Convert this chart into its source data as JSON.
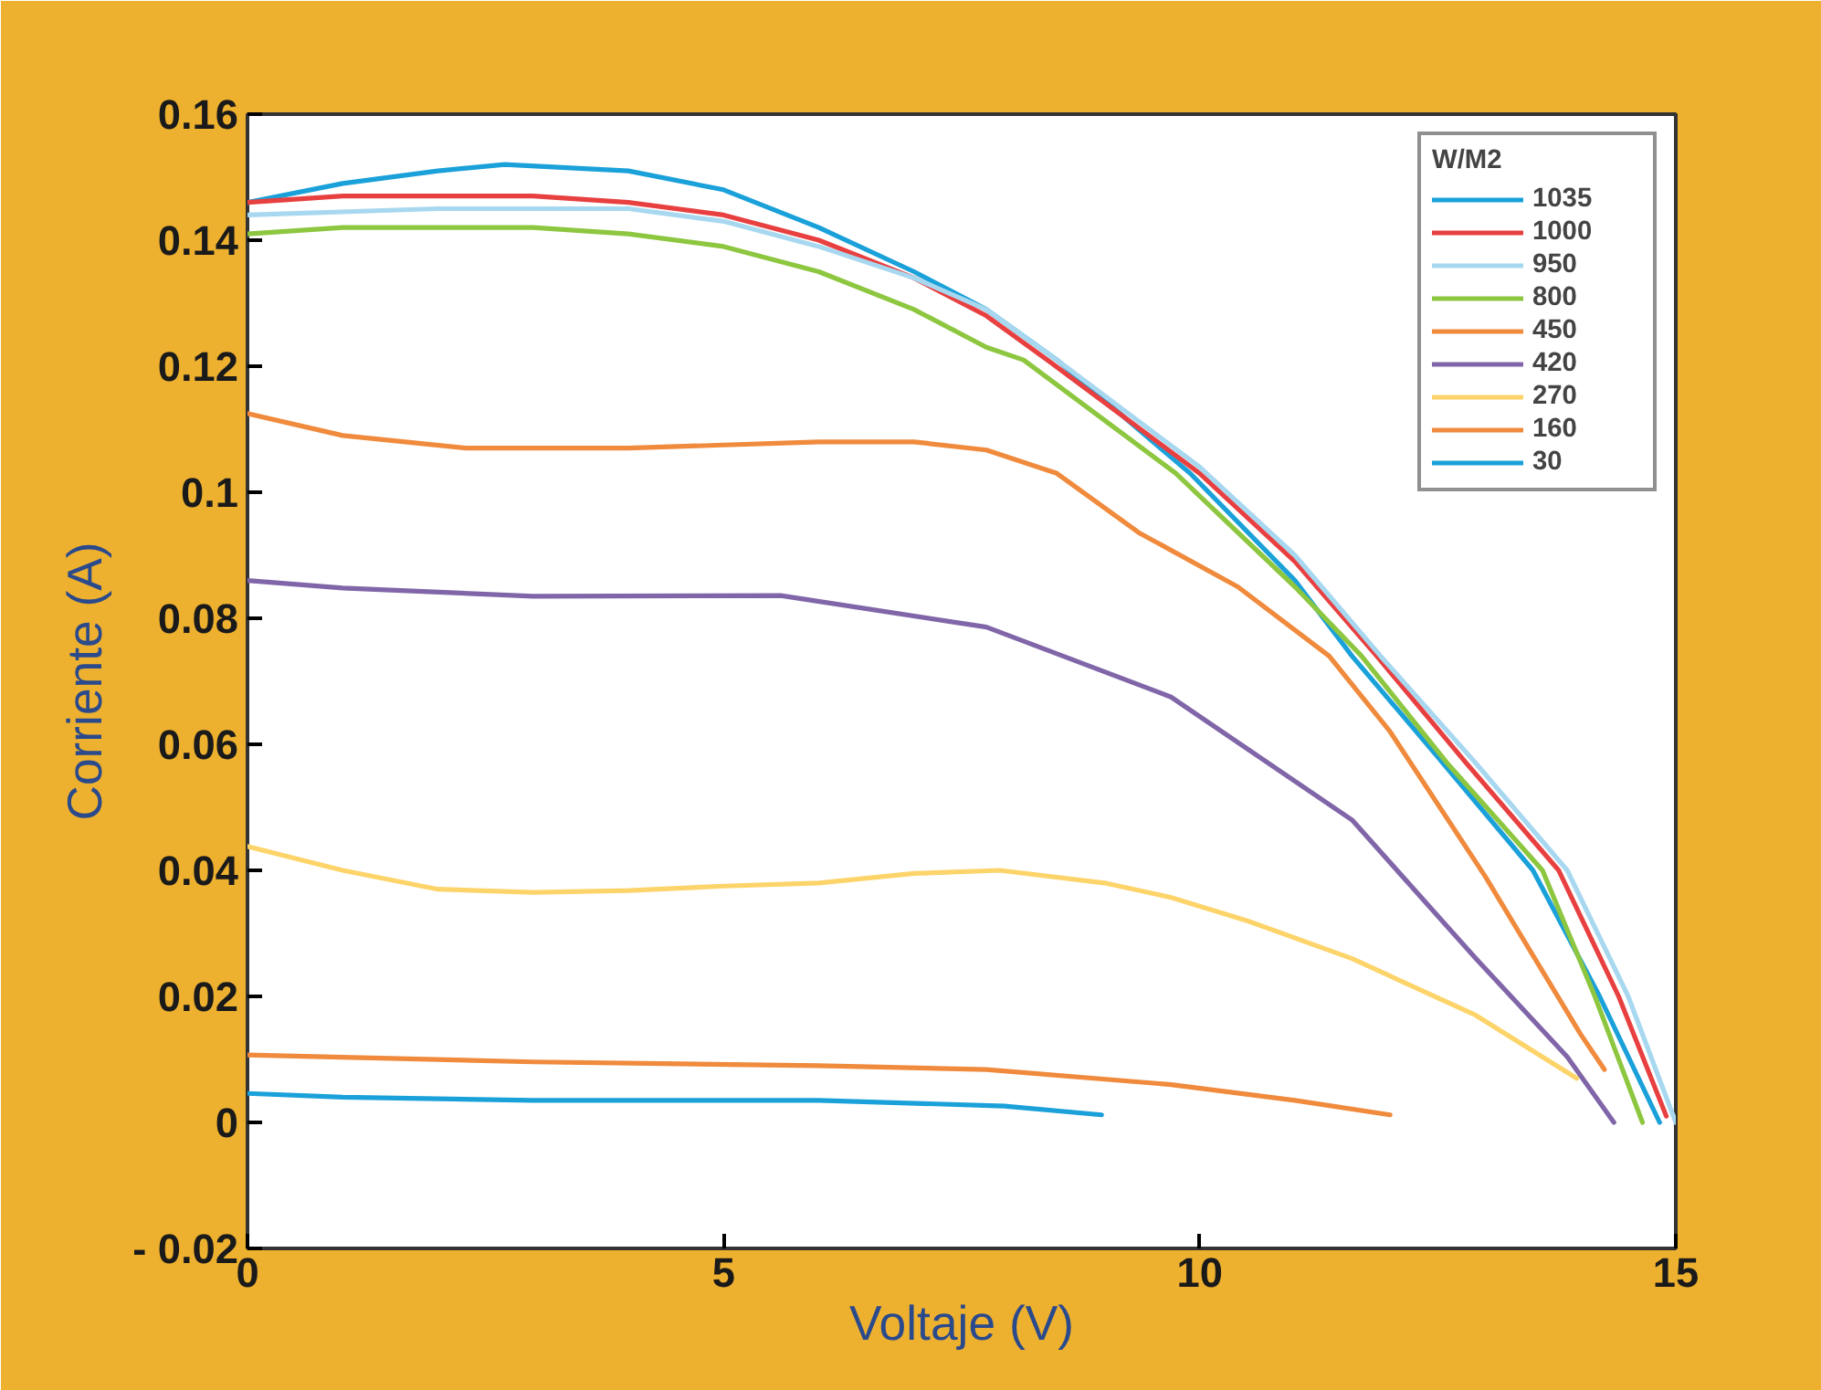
{
  "chart_data": {
    "type": "line",
    "xlabel": "Voltaje (V)",
    "ylabel": "Corriente (A)",
    "legend_title": "W/M2",
    "legend": "top right",
    "grid": false,
    "marker": "none",
    "line_style": "solid",
    "xlim": [
      0,
      15
    ],
    "ylim": [
      -0.02,
      0.16
    ],
    "xticks": [
      0,
      5,
      10,
      15
    ],
    "yticks": [
      {
        "value": -0.02,
        "label": "- 0.02"
      },
      0,
      0.02,
      0.04,
      0.06,
      0.08,
      0.1,
      0.12,
      0.14,
      0.16
    ],
    "series": [
      {
        "name": "1035",
        "color": "#1ba1d9",
        "x": [
          0,
          1,
          2,
          2.7,
          4,
          5,
          6,
          7,
          7.76,
          8.5,
          9.9,
          11,
          11.6,
          12.5,
          13.5,
          14.2,
          14.83
        ],
        "values": [
          0.146,
          0.149,
          0.151,
          0.152,
          0.151,
          0.148,
          0.142,
          0.135,
          0.129,
          0.121,
          0.103,
          0.086,
          0.074,
          0.058,
          0.04,
          0.02,
          0
        ]
      },
      {
        "name": "1000",
        "color": "#e84040",
        "x": [
          0,
          1,
          2,
          3,
          4,
          5,
          6,
          7,
          7.76,
          8.4,
          10,
          11,
          11.86,
          12.8,
          13.77,
          14.4,
          14.9
        ],
        "values": [
          0.146,
          0.147,
          0.147,
          0.147,
          0.146,
          0.144,
          0.14,
          0.134,
          0.128,
          0.121,
          0.103,
          0.089,
          0.074,
          0.057,
          0.04,
          0.02,
          0.001
        ]
      },
      {
        "name": "950",
        "color": "#a8d8f0",
        "x": [
          0,
          2,
          4,
          5,
          6,
          7,
          7.76,
          8.5,
          10,
          11,
          11.9,
          12.9,
          13.86,
          14.5,
          15
        ],
        "values": [
          0.144,
          0.145,
          0.145,
          0.143,
          0.139,
          0.134,
          0.129,
          0.121,
          0.104,
          0.09,
          0.074,
          0.057,
          0.04,
          0.02,
          0
        ]
      },
      {
        "name": "800",
        "color": "#8dc63f",
        "x": [
          0,
          1,
          2,
          3,
          4,
          5,
          6,
          7,
          7.76,
          8.15,
          9.75,
          11,
          11.7,
          12.6,
          13.6,
          14.15,
          14.65
        ],
        "values": [
          0.141,
          0.142,
          0.142,
          0.142,
          0.141,
          0.139,
          0.135,
          0.129,
          0.123,
          0.121,
          0.103,
          0.085,
          0.074,
          0.057,
          0.04,
          0.02,
          0
        ]
      },
      {
        "name": "450",
        "color": "#f08a3c",
        "x": [
          0,
          1,
          2.3,
          4,
          5,
          6,
          7,
          7.76,
          8.5,
          9.36,
          10.4,
          11.36,
          12,
          13,
          14,
          14.25
        ],
        "values": [
          0.1125,
          0.109,
          0.107,
          0.107,
          0.1075,
          0.108,
          0.108,
          0.1067,
          0.103,
          0.0936,
          0.085,
          0.074,
          0.062,
          0.039,
          0.014,
          0.0084
        ]
      },
      {
        "name": "420",
        "color": "#8066a8",
        "x": [
          0,
          1,
          3,
          5.6,
          7.76,
          9.7,
          11.6,
          12.9,
          13.86,
          14.35
        ],
        "values": [
          0.086,
          0.0848,
          0.0835,
          0.0836,
          0.0786,
          0.0675,
          0.048,
          0.026,
          0.0104,
          0
        ]
      },
      {
        "name": "270",
        "color": "#fdd46a",
        "x": [
          0,
          1,
          2,
          3,
          4,
          5,
          6,
          7,
          7.9,
          9,
          9.7,
          10.5,
          11.6,
          12.9,
          13.96
        ],
        "values": [
          0.0438,
          0.04,
          0.037,
          0.0365,
          0.0368,
          0.0375,
          0.038,
          0.0395,
          0.04,
          0.038,
          0.0357,
          0.032,
          0.026,
          0.017,
          0.007
        ]
      },
      {
        "name": "160",
        "color": "#f08a3c",
        "x": [
          0,
          3,
          6,
          7.76,
          9.7,
          11,
          12
        ],
        "values": [
          0.0107,
          0.0096,
          0.009,
          0.0084,
          0.006,
          0.0035,
          0.0012
        ]
      },
      {
        "name": "30",
        "color": "#1ba1d9",
        "x": [
          0,
          1,
          3,
          6,
          7.95,
          8.97
        ],
        "values": [
          0.0046,
          0.004,
          0.0035,
          0.0035,
          0.0026,
          0.0012
        ]
      }
    ]
  }
}
